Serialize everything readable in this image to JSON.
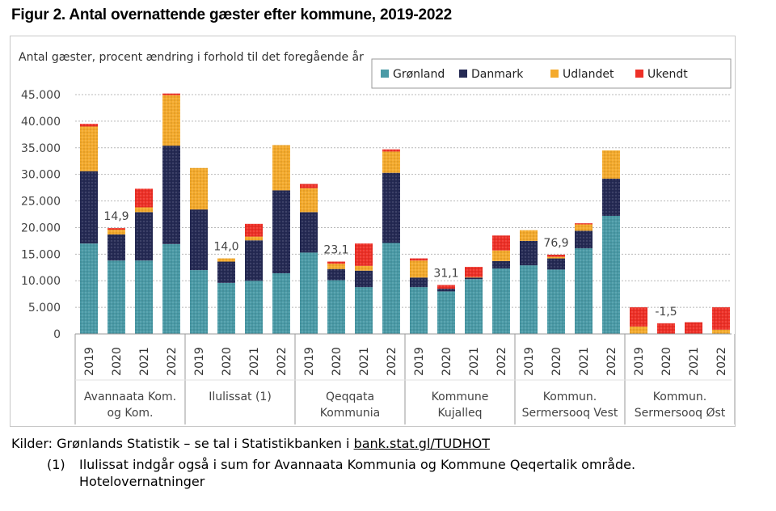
{
  "page": {
    "title": "Figur 2. Antal overnattende gæster efter kommune, 2019-2022",
    "sources_prefix": "Kilder: Grønlands Statistik – se tal i Statistikbanken i ",
    "sources_link": "bank.stat.gl/TUDHOT",
    "footnote_number": "(1)",
    "footnote_text": "Ilulissat indgår også i sum for Avannaata Kommunia og Kommune Qeqertalik område.",
    "footnote_text_2": "Hotelovernatninger"
  },
  "chart_data": {
    "type": "bar",
    "stacked": true,
    "subtitle": "Antal gæster, procent ændring i forhold til det foregående år",
    "ylim": [
      0,
      45000
    ],
    "yticks": [
      "0",
      "5.000",
      "10.000",
      "15.000",
      "20.000",
      "25.000",
      "30.000",
      "35.000",
      "40.000",
      "45.000"
    ],
    "grid": true,
    "legend_position": "top-right",
    "years": [
      "2019",
      "2020",
      "2021",
      "2022"
    ],
    "groups": [
      {
        "name_lines": [
          "Avannaata Kom.",
          "og Kom."
        ]
      },
      {
        "name_lines": [
          "Ilulissat (1)"
        ]
      },
      {
        "name_lines": [
          "Qeqqata",
          "Kommunia"
        ]
      },
      {
        "name_lines": [
          "Kommune",
          "Kujalleq"
        ]
      },
      {
        "name_lines": [
          "Kommun.",
          "Sermersooq Vest"
        ]
      },
      {
        "name_lines": [
          "Kommun.",
          "Sermersooq Øst"
        ]
      }
    ],
    "series": [
      {
        "name": "Grønland",
        "color": "#4a9aa6",
        "values": [
          [
            17000,
            13800,
            13800,
            16900
          ],
          [
            12000,
            9600,
            10000,
            11400
          ],
          [
            15300,
            10100,
            8800,
            17100
          ],
          [
            8800,
            8000,
            10300,
            12300
          ],
          [
            12900,
            12100,
            16100,
            22200
          ],
          [
            0,
            0,
            0,
            0
          ]
        ]
      },
      {
        "name": "Danmark",
        "color": "#252a54",
        "values": [
          [
            13600,
            4900,
            9100,
            18500
          ],
          [
            11400,
            4000,
            7600,
            15600
          ],
          [
            7600,
            2100,
            3100,
            13200
          ],
          [
            1800,
            500,
            300,
            1400
          ],
          [
            4600,
            2100,
            3300,
            7000
          ],
          [
            0,
            0,
            0,
            0
          ]
        ]
      },
      {
        "name": "Udlandet",
        "color": "#f4aa2c",
        "values": [
          [
            8400,
            900,
            900,
            9500
          ],
          [
            7800,
            600,
            700,
            8500
          ],
          [
            4500,
            1000,
            900,
            4000
          ],
          [
            3200,
            0,
            100,
            2000
          ],
          [
            2000,
            300,
            1200,
            5300
          ],
          [
            1400,
            0,
            0,
            800
          ]
        ]
      },
      {
        "name": "Ukendt",
        "color": "#ee3027",
        "values": [
          [
            500,
            300,
            3500,
            300
          ],
          [
            0,
            0,
            2400,
            0
          ],
          [
            800,
            400,
            4200,
            400
          ],
          [
            400,
            700,
            1900,
            2800
          ],
          [
            0,
            400,
            200,
            0
          ],
          [
            3600,
            2000,
            2200,
            4200
          ]
        ]
      }
    ],
    "annotations": [
      {
        "group": 0,
        "year": 1,
        "text": "14,9"
      },
      {
        "group": 1,
        "year": 1,
        "text": "14,0"
      },
      {
        "group": 2,
        "year": 1,
        "text": "23,1"
      },
      {
        "group": 3,
        "year": 1,
        "text": "31,1"
      },
      {
        "group": 4,
        "year": 1,
        "text": "76,9"
      },
      {
        "group": 5,
        "year": 1,
        "text": "-1,5"
      }
    ]
  }
}
